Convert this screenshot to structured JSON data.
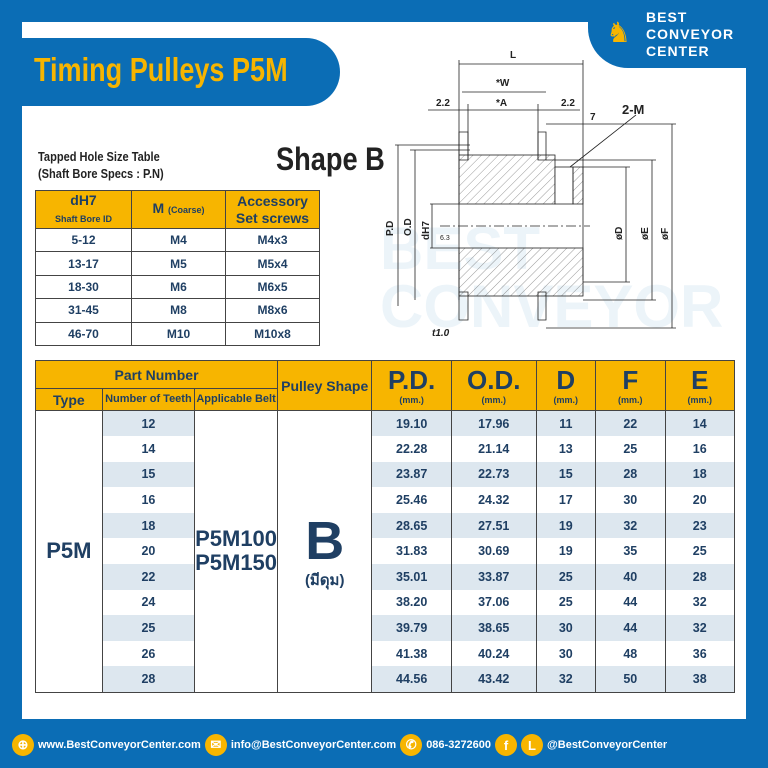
{
  "header": {
    "title": "Timing Pulleys P5M",
    "logo_text": [
      "BEST",
      "CONVEYOR",
      "CENTER"
    ],
    "shape_title": "Shape B"
  },
  "tapped_table": {
    "title": "Tapped Hole Size Table",
    "subtitle": "(Shaft Bore Specs : P.N)",
    "headers": {
      "col1": "dH7",
      "col1_sub": "Shaft Bore ID",
      "col2": "M",
      "col2_sub": "(Coarse)",
      "col3": "Accessory Set screws"
    },
    "rows": [
      [
        "5-12",
        "M4",
        "M4x3"
      ],
      [
        "13-17",
        "M5",
        "M5x4"
      ],
      [
        "18-30",
        "M6",
        "M6x5"
      ],
      [
        "31-45",
        "M8",
        "M8x6"
      ],
      [
        "46-70",
        "M10",
        "M10x8"
      ]
    ]
  },
  "diagram": {
    "L": "L",
    "W": "*W",
    "A": "*A",
    "left_margin": "2.2",
    "right_margin": "2.2",
    "hub": "7",
    "tap": "2-M",
    "pd": "P.D",
    "od": "O.D",
    "bore": "dH7",
    "rough": "6.3",
    "d": "øD",
    "e": "øE",
    "f": "øF",
    "t": "t1.0"
  },
  "main_table": {
    "headers": {
      "part_number": "Part Number",
      "type": "Type",
      "teeth": "Number of Teeth",
      "belt": "Applicable Belt",
      "shape": "Pulley Shape",
      "pd": "P.D.",
      "od": "O.D.",
      "d": "D",
      "f": "F",
      "e": "E",
      "unit": "(mm.)"
    },
    "type": "P5M",
    "belts": [
      "P5M100",
      "P5M150"
    ],
    "shape": "B",
    "shape_note": "(มีดุม)",
    "rows": [
      {
        "teeth": "12",
        "pd": "19.10",
        "od": "17.96",
        "d": "11",
        "f": "22",
        "e": "14"
      },
      {
        "teeth": "14",
        "pd": "22.28",
        "od": "21.14",
        "d": "13",
        "f": "25",
        "e": "16"
      },
      {
        "teeth": "15",
        "pd": "23.87",
        "od": "22.73",
        "d": "15",
        "f": "28",
        "e": "18"
      },
      {
        "teeth": "16",
        "pd": "25.46",
        "od": "24.32",
        "d": "17",
        "f": "30",
        "e": "20"
      },
      {
        "teeth": "18",
        "pd": "28.65",
        "od": "27.51",
        "d": "19",
        "f": "32",
        "e": "23"
      },
      {
        "teeth": "20",
        "pd": "31.83",
        "od": "30.69",
        "d": "19",
        "f": "35",
        "e": "25"
      },
      {
        "teeth": "22",
        "pd": "35.01",
        "od": "33.87",
        "d": "25",
        "f": "40",
        "e": "28"
      },
      {
        "teeth": "24",
        "pd": "38.20",
        "od": "37.06",
        "d": "25",
        "f": "44",
        "e": "32"
      },
      {
        "teeth": "25",
        "pd": "39.79",
        "od": "38.65",
        "d": "30",
        "f": "44",
        "e": "32"
      },
      {
        "teeth": "26",
        "pd": "41.38",
        "od": "40.24",
        "d": "30",
        "f": "48",
        "e": "36"
      },
      {
        "teeth": "28",
        "pd": "44.56",
        "od": "43.42",
        "d": "32",
        "f": "50",
        "e": "38"
      }
    ]
  },
  "footer": {
    "website": "www.BestConveyorCenter.com",
    "email": "info@BestConveyorCenter.com",
    "phone": "086-3272600",
    "social": "@BestConveyorCenter"
  },
  "colors": {
    "brand_blue": "#0b6db5",
    "accent": "#f7b500",
    "text": "#1f3f63"
  }
}
